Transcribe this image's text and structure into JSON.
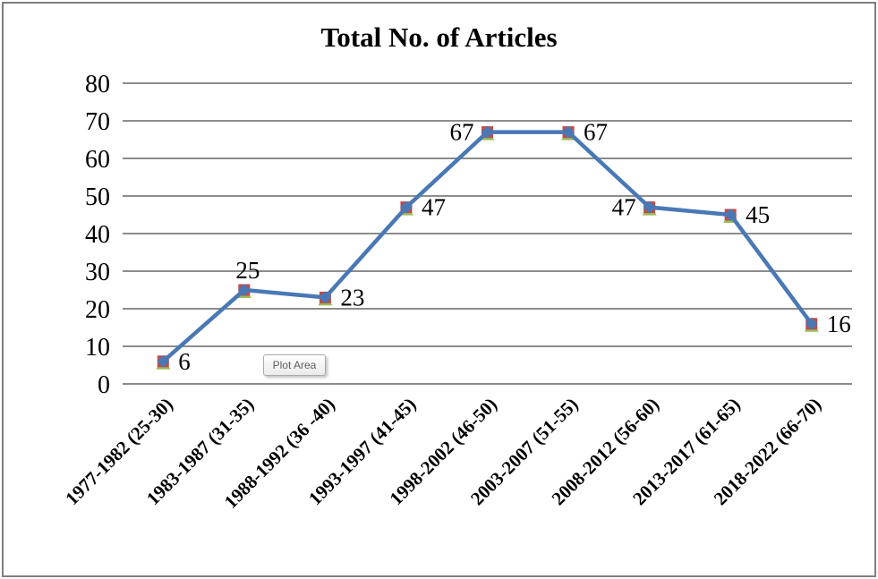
{
  "title": "Total No. of Articles",
  "tooltip": {
    "text": "Plot Area"
  },
  "frame": {
    "border_color": "#7f7f7f",
    "background": "#ffffff"
  },
  "chart_data": {
    "type": "line",
    "title": "Total No. of Articles",
    "categories": [
      "1977-1982 (25-30)",
      "1983-1987 (31-35)",
      "1988-1992 (36 -40)",
      "1993-1997 (41-45)",
      "1998-2002 (46-50)",
      "2003-2007 (51-55)",
      "2008-2012 (56-60)",
      "2013-2017 (61-65)",
      "2018-2022 (66-70)"
    ],
    "series": [
      {
        "name": "Total No. of Articles",
        "values": [
          6,
          25,
          23,
          47,
          67,
          67,
          47,
          45,
          16
        ]
      }
    ],
    "data_labels": [
      6,
      25,
      23,
      47,
      67,
      67,
      47,
      45,
      16
    ],
    "label_placement": [
      "right",
      "above",
      "right",
      "right",
      "left",
      "right",
      "left",
      "right",
      "right"
    ],
    "ylim": [
      0,
      80
    ],
    "yticks": [
      0,
      10,
      20,
      30,
      40,
      50,
      60,
      70,
      80
    ],
    "xlabel": "",
    "ylabel": "",
    "grid": true,
    "legend": "none",
    "x_label_rotation_deg": -45,
    "marker_layers": [
      "green-triangle",
      "red-square",
      "blue-diamond"
    ],
    "colors": {
      "line": "#4a78b5",
      "diamond": "#4a78b5",
      "square": "#be4c49",
      "triangle": "#9bbb59",
      "gridline": "#8c8c8c",
      "axis_text": "#000000",
      "data_label_text": "#000000"
    }
  }
}
